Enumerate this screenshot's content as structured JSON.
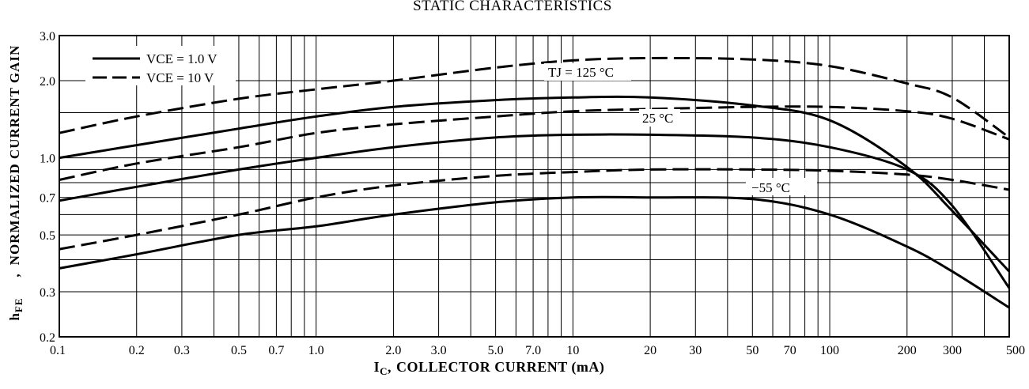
{
  "chart_data": {
    "type": "line",
    "title": "STATIC  CHARACTERISTICS",
    "xlabel": "COLLECTOR CURRENT (mA)",
    "ylabel": "NORMALIZED CURRENT GAIN",
    "xscale": "log",
    "yscale": "log",
    "xlim": [
      0.1,
      500
    ],
    "ylim": [
      0.2,
      3.0
    ],
    "grid": true,
    "legend_position": "top-left",
    "x_tick_labels": [
      "0.1",
      "0.2",
      "0.3",
      "0.5",
      "0.7",
      "1.0",
      "2.0",
      "3.0",
      "5.0",
      "7.0",
      "10",
      "20",
      "30",
      "50",
      "70",
      "100",
      "200",
      "300",
      "500"
    ],
    "y_tick_labels": [
      "0.2",
      "0.3",
      "0.5",
      "0.7",
      "1.0",
      "2.0",
      "3.0"
    ],
    "legend": [
      {
        "label": "VCE = 1.0 V",
        "style": "solid"
      },
      {
        "label": "VCE = 10 V",
        "style": "dashed"
      }
    ],
    "annotations": [
      "TJ = 125 °C",
      "25 °C",
      "−55 °C"
    ],
    "series": [
      {
        "tj": "125",
        "vce": "1.0",
        "style": "solid",
        "x": [
          0.1,
          0.2,
          0.5,
          1,
          2,
          5,
          10,
          20,
          50,
          100,
          200,
          300,
          500
        ],
        "y": [
          1.0,
          1.12,
          1.3,
          1.45,
          1.58,
          1.68,
          1.72,
          1.72,
          1.6,
          1.4,
          0.92,
          0.62,
          0.36
        ]
      },
      {
        "tj": "125",
        "vce": "10",
        "style": "dashed",
        "x": [
          0.1,
          0.2,
          0.5,
          1,
          2,
          5,
          10,
          20,
          50,
          100,
          200,
          300,
          500
        ],
        "y": [
          1.25,
          1.45,
          1.7,
          1.85,
          2.0,
          2.25,
          2.4,
          2.45,
          2.42,
          2.28,
          1.95,
          1.72,
          1.2
        ]
      },
      {
        "tj": "25",
        "vce": "1.0",
        "style": "solid",
        "x": [
          0.1,
          0.2,
          0.5,
          1,
          2,
          5,
          10,
          20,
          50,
          100,
          200,
          300,
          500
        ],
        "y": [
          0.68,
          0.77,
          0.9,
          1.0,
          1.1,
          1.2,
          1.23,
          1.23,
          1.2,
          1.1,
          0.9,
          0.65,
          0.31
        ]
      },
      {
        "tj": "25",
        "vce": "10",
        "style": "dashed",
        "x": [
          0.1,
          0.2,
          0.5,
          1,
          2,
          5,
          10,
          20,
          50,
          100,
          200,
          300,
          500
        ],
        "y": [
          0.82,
          0.95,
          1.1,
          1.25,
          1.35,
          1.45,
          1.52,
          1.55,
          1.58,
          1.58,
          1.52,
          1.42,
          1.18
        ]
      },
      {
        "tj": "-55",
        "vce": "1.0",
        "style": "solid",
        "x": [
          0.1,
          0.2,
          0.5,
          1,
          2,
          5,
          10,
          20,
          50,
          100,
          200,
          300,
          500
        ],
        "y": [
          0.37,
          0.42,
          0.5,
          0.54,
          0.6,
          0.67,
          0.7,
          0.7,
          0.69,
          0.6,
          0.45,
          0.36,
          0.26
        ]
      },
      {
        "tj": "-55",
        "vce": "10",
        "style": "dashed",
        "x": [
          0.1,
          0.2,
          0.5,
          1,
          2,
          5,
          10,
          20,
          50,
          100,
          200,
          300,
          500
        ],
        "y": [
          0.44,
          0.5,
          0.6,
          0.7,
          0.78,
          0.85,
          0.88,
          0.9,
          0.9,
          0.89,
          0.86,
          0.82,
          0.75
        ]
      }
    ]
  }
}
